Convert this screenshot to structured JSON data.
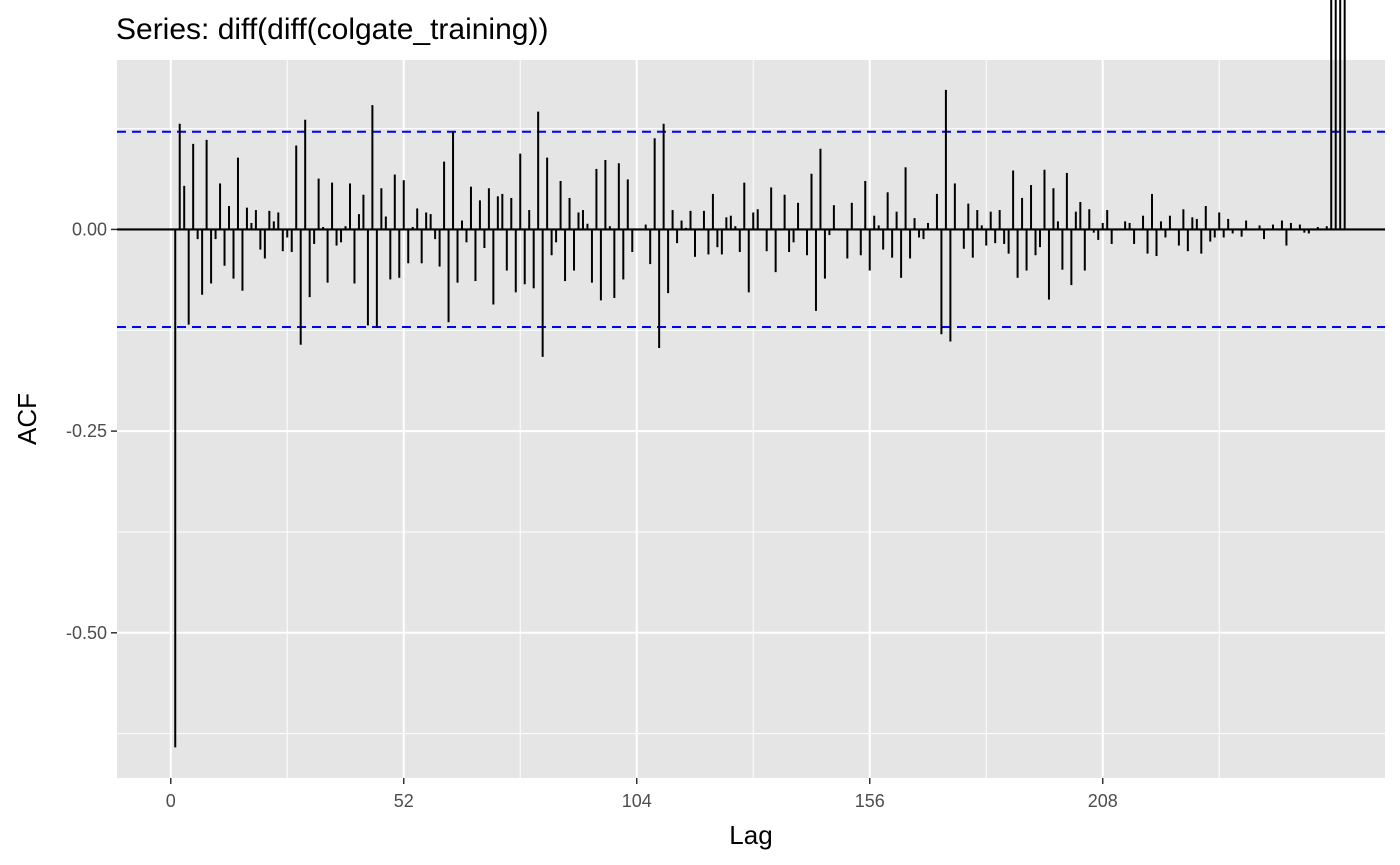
{
  "chart_data": {
    "type": "bar",
    "title": "Series: diff(diff(colgate_training))",
    "xlabel": "Lag",
    "ylabel": "ACF",
    "xlim": [
      -12,
      271
    ],
    "ylim": [
      -0.68,
      0.21
    ],
    "x_ticks": [
      0,
      52,
      104,
      156,
      208
    ],
    "y_ticks": [
      {
        "value": 0,
        "label": "0.00"
      },
      {
        "value": -0.25,
        "label": "-0.25"
      },
      {
        "value": -0.5,
        "label": "-0.50"
      }
    ],
    "y_minor_grid": [
      0.125,
      -0.125,
      -0.375,
      -0.625
    ],
    "x_minor_grid": [
      26,
      78,
      130,
      182,
      234
    ],
    "ci_bound": 0.121,
    "grid": true,
    "background": "#e5e5e5",
    "grid_color": "#ffffff",
    "ci_color": "#0000ff",
    "bar_color": "#000000",
    "lags": [
      1,
      2,
      3,
      4,
      5,
      6,
      7,
      8,
      9,
      10,
      11,
      12,
      13,
      14,
      15,
      16,
      17,
      18,
      19,
      20,
      21,
      22,
      23,
      24,
      25,
      26,
      27,
      28,
      29,
      30,
      31,
      32,
      33,
      34,
      35,
      36,
      37,
      38,
      39,
      40,
      41,
      42,
      43,
      44,
      45,
      46,
      47,
      48,
      49,
      50,
      51,
      52,
      53,
      54,
      55,
      56,
      57,
      58,
      59,
      60,
      61,
      62,
      63,
      64,
      65,
      66,
      67,
      68,
      69,
      70,
      71,
      72,
      73,
      74,
      75,
      76,
      77,
      78,
      79,
      80,
      81,
      82,
      83,
      84,
      85,
      86,
      87,
      88,
      89,
      90,
      91,
      92,
      93,
      94,
      95,
      96,
      97,
      98,
      99,
      100,
      101,
      102,
      103,
      104,
      105,
      106,
      107,
      108,
      109,
      110,
      111,
      112,
      113,
      114,
      115,
      116,
      117,
      118,
      119,
      120,
      121,
      122,
      123,
      124,
      125,
      126,
      127,
      128,
      129,
      130,
      131,
      132,
      133,
      134,
      135,
      136,
      137,
      138,
      139,
      140,
      141,
      142,
      143,
      144,
      145,
      146,
      147,
      148,
      149,
      150,
      151,
      152,
      153,
      154,
      155,
      156,
      157,
      158,
      159,
      160,
      161,
      162,
      163,
      164,
      165,
      166,
      167,
      168,
      169,
      170,
      171,
      172,
      173,
      174,
      175,
      176,
      177,
      178,
      179,
      180,
      181,
      182,
      183,
      184,
      185,
      186,
      187,
      188,
      189,
      190,
      191,
      192,
      193,
      194,
      195,
      196,
      197,
      198,
      199,
      200,
      201,
      202,
      203,
      204,
      205,
      206,
      207,
      208,
      209,
      210,
      211,
      212,
      213,
      214,
      215,
      216,
      217,
      218,
      219,
      220,
      221,
      222,
      223,
      224,
      225,
      226,
      227,
      228,
      229,
      230,
      231,
      232,
      233,
      234,
      235,
      236,
      237,
      238,
      239,
      240,
      241,
      242,
      243,
      244,
      245,
      246,
      247,
      248,
      249,
      250,
      251,
      252,
      253,
      254,
      255,
      256,
      257,
      258,
      259,
      260,
      261,
      262
    ],
    "values": [
      -0.642,
      0.131,
      0.054,
      -0.118,
      0.106,
      -0.012,
      -0.081,
      0.111,
      -0.067,
      -0.012,
      0.057,
      -0.045,
      0.029,
      -0.061,
      0.089,
      -0.076,
      0.027,
      0.008,
      0.024,
      -0.025,
      -0.036,
      0.023,
      0.01,
      0.021,
      -0.027,
      -0.01,
      -0.028,
      0.104,
      -0.143,
      0.136,
      -0.084,
      -0.018,
      0.063,
      0.003,
      -0.066,
      0.058,
      -0.02,
      -0.016,
      0.004,
      0.057,
      -0.067,
      0.019,
      0.043,
      -0.119,
      0.154,
      -0.122,
      0.051,
      0.016,
      -0.062,
      0.068,
      -0.06,
      0.061,
      -0.042,
      0.003,
      0.026,
      -0.042,
      0.021,
      0.019,
      -0.012,
      -0.046,
      0.084,
      -0.115,
      0.121,
      -0.066,
      0.011,
      -0.016,
      0.053,
      -0.064,
      0.036,
      -0.023,
      0.051,
      -0.093,
      0.041,
      0.044,
      -0.051,
      0.039,
      -0.078,
      0.094,
      -0.068,
      0.024,
      -0.073,
      0.146,
      -0.158,
      0.089,
      -0.032,
      -0.016,
      0.06,
      -0.064,
      0.039,
      -0.051,
      0.021,
      0.024,
      0.007,
      -0.066,
      0.075,
      -0.088,
      0.086,
      0.004,
      -0.085,
      0.082,
      -0.062,
      0.062,
      -0.028,
      0.0,
      0.0,
      0.006,
      -0.043,
      0.113,
      -0.147,
      0.131,
      -0.079,
      0.024,
      -0.017,
      0.011,
      0.002,
      0.023,
      -0.034,
      0.0,
      0.023,
      -0.031,
      0.044,
      -0.022,
      -0.031,
      0.015,
      0.017,
      0.004,
      -0.028,
      0.058,
      -0.078,
      0.021,
      0.025,
      0.0,
      -0.027,
      0.052,
      -0.053,
      0.0,
      0.043,
      -0.028,
      -0.016,
      0.033,
      0.0,
      -0.032,
      0.069,
      -0.101,
      0.1,
      -0.061,
      -0.007,
      0.03,
      0.0,
      0.0,
      -0.036,
      0.033,
      0.0,
      -0.032,
      0.06,
      -0.051,
      0.017,
      0.005,
      -0.025,
      0.046,
      -0.035,
      0.022,
      -0.06,
      0.077,
      -0.036,
      0.014,
      -0.01,
      -0.012,
      0.008,
      0.0,
      0.044,
      -0.13,
      0.173,
      -0.139,
      0.057,
      0.0,
      -0.024,
      0.032,
      -0.035,
      0.024,
      0.005,
      -0.02,
      0.022,
      -0.017,
      0.024,
      -0.018,
      -0.03,
      0.073,
      -0.06,
      0.039,
      -0.051,
      0.055,
      -0.032,
      -0.022,
      0.074,
      -0.087,
      0.051,
      0.01,
      -0.05,
      0.07,
      -0.069,
      0.022,
      0.034,
      -0.051,
      0.025,
      -0.004,
      -0.013,
      0.008,
      0.024,
      -0.018,
      0.0,
      0.0,
      0.01,
      0.008,
      -0.018,
      0.0,
      0.017,
      -0.03,
      0.044,
      -0.033,
      0.01,
      -0.01,
      0.017,
      0.0,
      -0.02,
      0.025,
      -0.027,
      0.015,
      0.013,
      -0.03,
      0.029,
      -0.015,
      -0.01,
      0.021,
      -0.01,
      0.013,
      -0.005,
      0.0,
      -0.009,
      0.011,
      0.0,
      0.0,
      0.005,
      -0.012,
      0.0,
      0.006,
      0.0,
      0.011,
      -0.02,
      0.008,
      0.0,
      0.006,
      -0.004,
      -0.005,
      0.0,
      0.003,
      0.0,
      0.004
    ]
  }
}
